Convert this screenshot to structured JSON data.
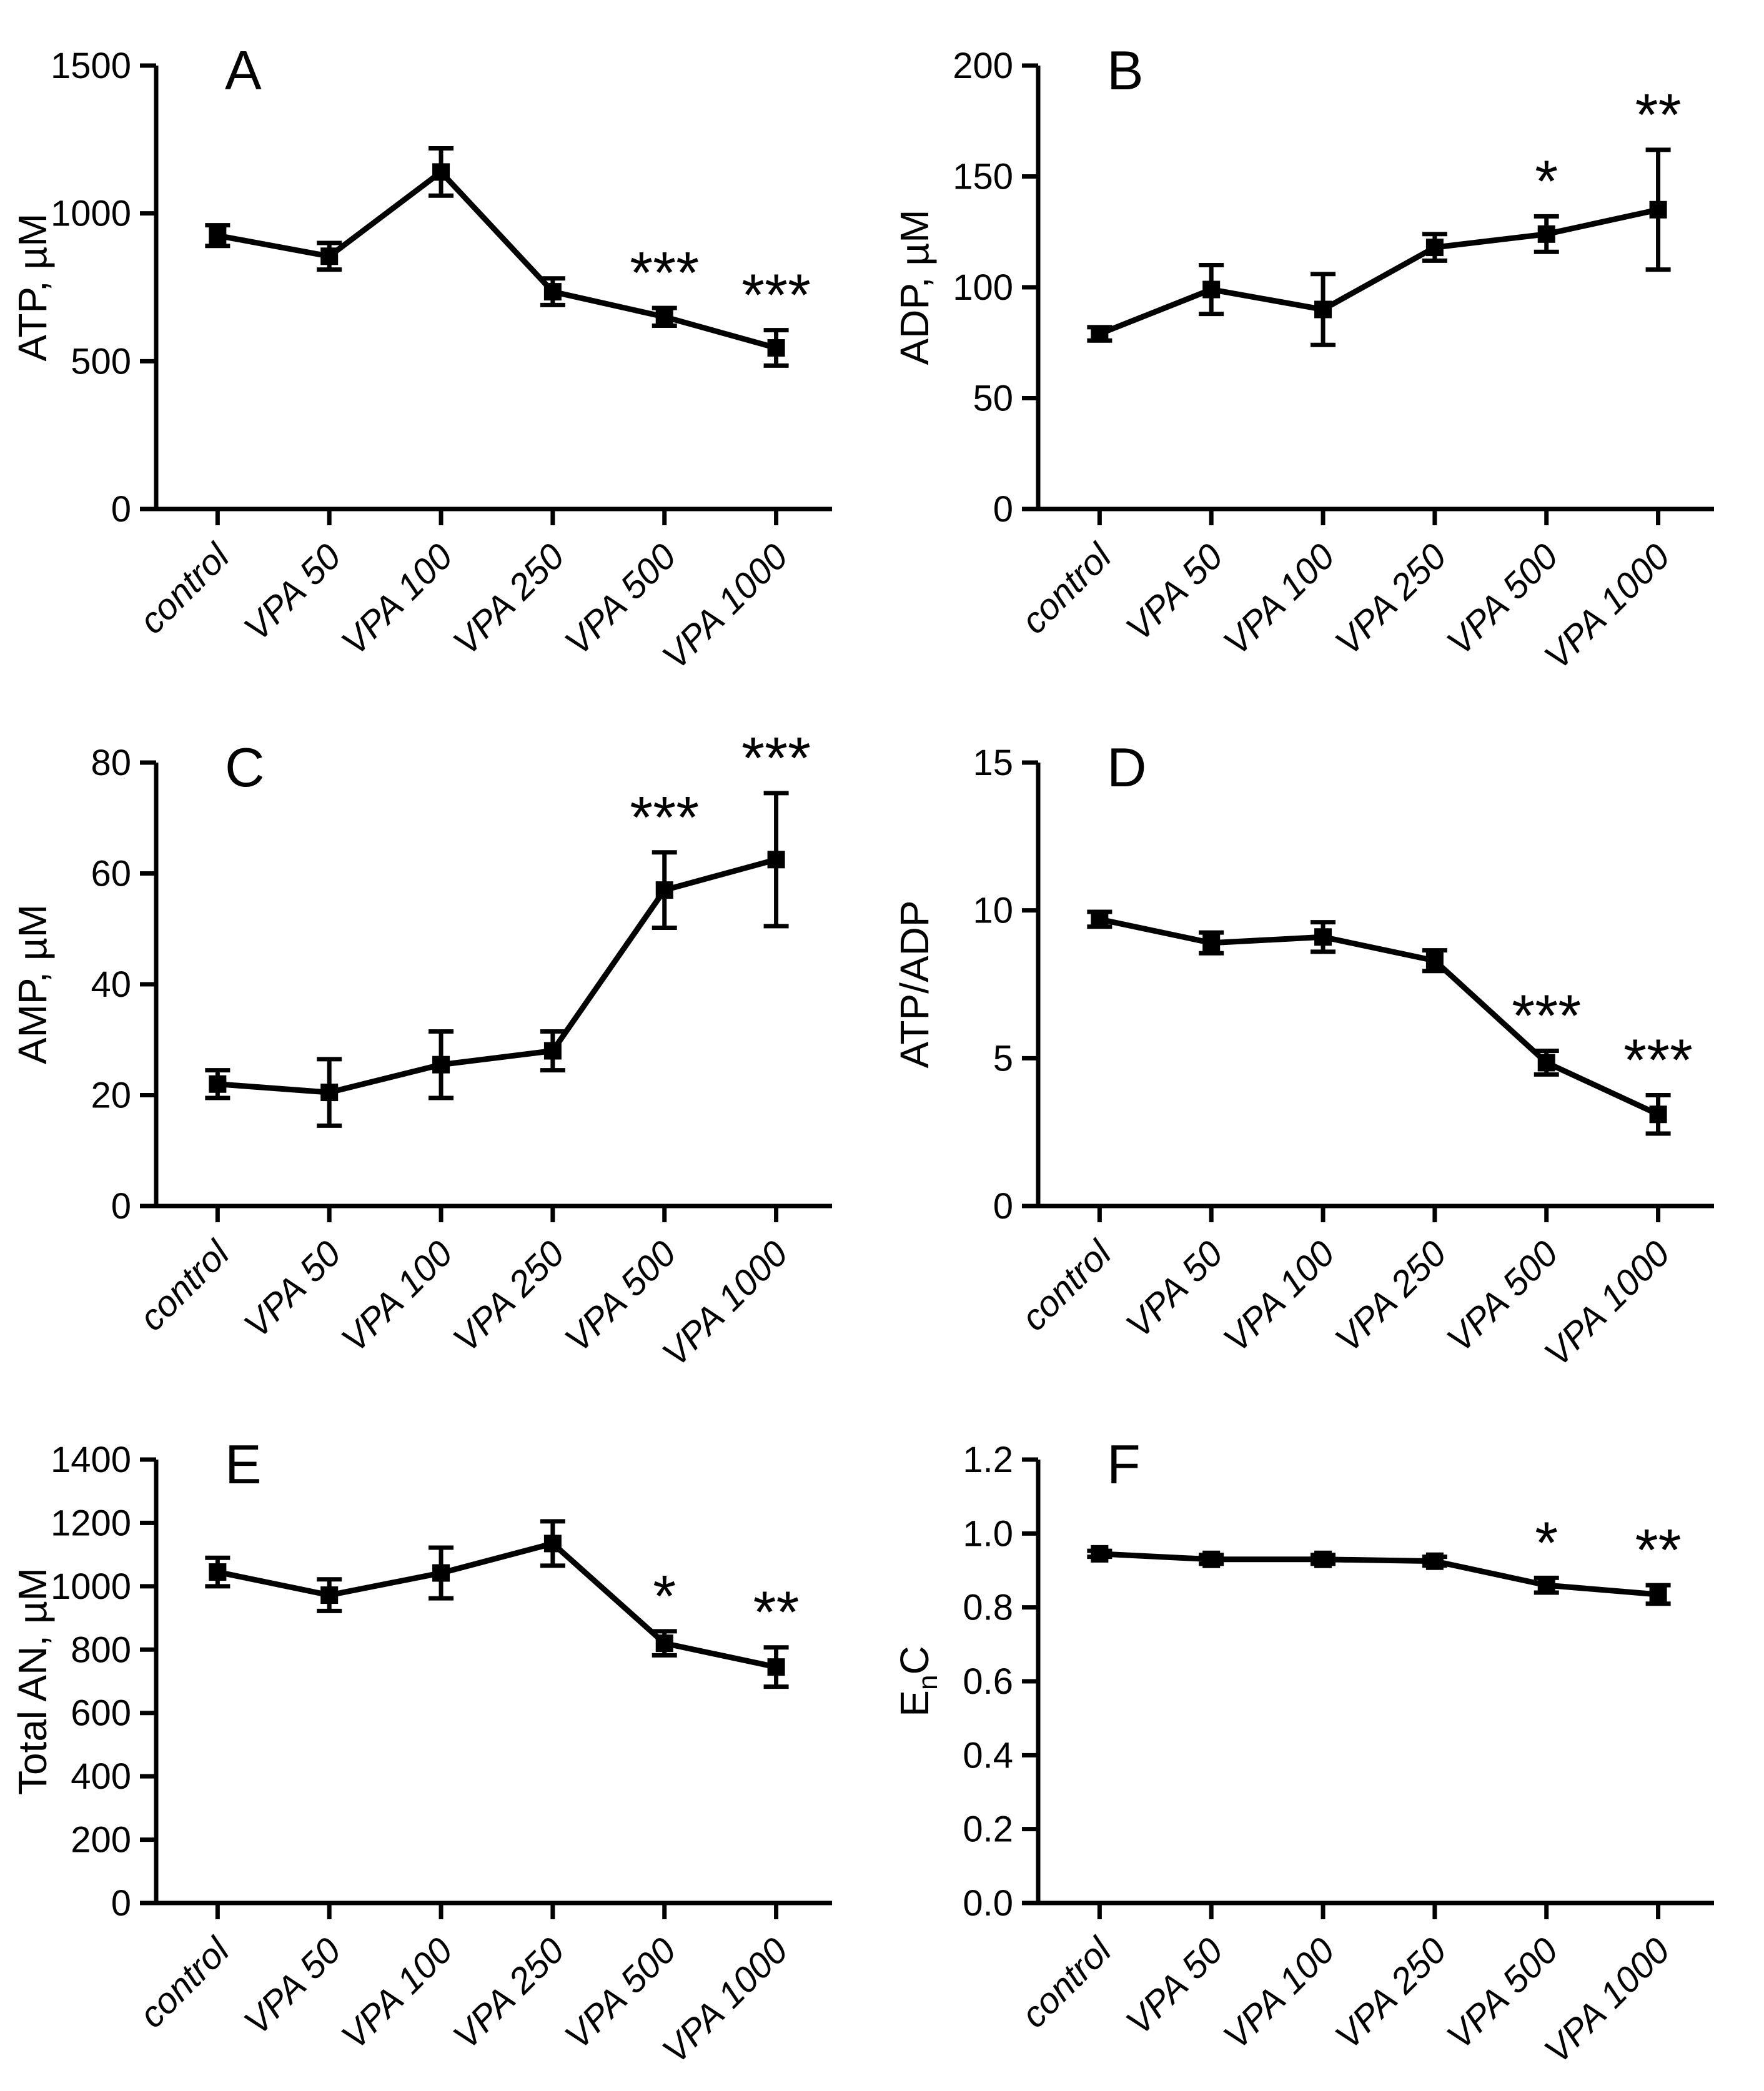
{
  "figure": {
    "background": "#ffffff",
    "line_color": "#000000",
    "text_color": "#000000",
    "marker": "filled-square"
  },
  "categories": [
    "control",
    "VPA 50",
    "VPA 100",
    "VPA 250",
    "VPA 500",
    "VPA 1000"
  ],
  "chart_data": [
    {
      "panel": "A",
      "type": "line",
      "title": "",
      "xlabel": "",
      "ylabel": "ATP, µM",
      "categories": [
        "control",
        "VPA 50",
        "VPA 100",
        "VPA 250",
        "VPA 500",
        "VPA 1000"
      ],
      "values": [
        925,
        855,
        1140,
        735,
        650,
        545
      ],
      "errors": [
        35,
        45,
        80,
        45,
        30,
        60
      ],
      "significance": [
        "",
        "",
        "",
        "",
        "***",
        "***"
      ],
      "ylim": [
        0,
        1500
      ],
      "yticks": [
        0,
        500,
        1000,
        1500
      ],
      "ytick_labels": [
        "0",
        "500",
        "1000",
        "1500"
      ],
      "grid": false,
      "legend": null
    },
    {
      "panel": "B",
      "type": "line",
      "title": "",
      "xlabel": "",
      "ylabel": "ADP, µM",
      "categories": [
        "control",
        "VPA 50",
        "VPA 100",
        "VPA 250",
        "VPA 500",
        "VPA 1000"
      ],
      "values": [
        79,
        99,
        90,
        118,
        124,
        135
      ],
      "errors": [
        3,
        11,
        16,
        6,
        8,
        27
      ],
      "significance": [
        "",
        "",
        "",
        "",
        "*",
        "**"
      ],
      "ylim": [
        0,
        200
      ],
      "yticks": [
        0,
        50,
        100,
        150,
        200
      ],
      "ytick_labels": [
        "0",
        "50",
        "100",
        "150",
        "200"
      ],
      "grid": false,
      "legend": null
    },
    {
      "panel": "C",
      "type": "line",
      "title": "",
      "xlabel": "",
      "ylabel": "AMP, µM",
      "categories": [
        "control",
        "VPA 50",
        "VPA 100",
        "VPA 250",
        "VPA 500",
        "VPA 1000"
      ],
      "values": [
        22,
        20.5,
        25.5,
        28,
        57,
        62.5
      ],
      "errors": [
        2.5,
        6,
        6,
        3.5,
        6.8,
        12
      ],
      "significance": [
        "",
        "",
        "",
        "",
        "***",
        "***"
      ],
      "ylim": [
        0,
        80
      ],
      "yticks": [
        0,
        20,
        40,
        60,
        80
      ],
      "ytick_labels": [
        "0",
        "20",
        "40",
        "60",
        "80"
      ],
      "grid": false,
      "legend": null
    },
    {
      "panel": "D",
      "type": "line",
      "title": "",
      "xlabel": "",
      "ylabel": "ATP/ADP",
      "categories": [
        "control",
        "VPA 50",
        "VPA 100",
        "VPA 250",
        "VPA 500",
        "VPA 1000"
      ],
      "values": [
        9.7,
        8.9,
        9.1,
        8.3,
        4.85,
        3.1
      ],
      "errors": [
        0.25,
        0.35,
        0.5,
        0.35,
        0.4,
        0.65
      ],
      "significance": [
        "",
        "",
        "",
        "",
        "***",
        "***"
      ],
      "ylim": [
        0,
        15
      ],
      "yticks": [
        0,
        5,
        10,
        15
      ],
      "ytick_labels": [
        "0",
        "5",
        "10",
        "15"
      ],
      "grid": false,
      "legend": null
    },
    {
      "panel": "E",
      "type": "line",
      "title": "",
      "xlabel": "",
      "ylabel": "Total AN, µM",
      "categories": [
        "control",
        "VPA 50",
        "VPA 100",
        "VPA 250",
        "VPA 500",
        "VPA 1000"
      ],
      "values": [
        1045,
        972,
        1042,
        1135,
        820,
        745
      ],
      "errors": [
        45,
        50,
        80,
        70,
        38,
        62
      ],
      "significance": [
        "",
        "",
        "",
        "",
        "*",
        "**"
      ],
      "ylim": [
        0,
        1400
      ],
      "yticks": [
        0,
        200,
        400,
        600,
        800,
        1000,
        1200,
        1400
      ],
      "ytick_labels": [
        "0",
        "200",
        "400",
        "600",
        "800",
        "1000",
        "1200",
        "1400"
      ],
      "grid": false,
      "legend": null
    },
    {
      "panel": "F",
      "type": "line",
      "title": "",
      "xlabel": "",
      "ylabel": "EnC",
      "ylabel_parts": {
        "pre": "E",
        "sub": "n",
        "post": "C"
      },
      "categories": [
        "control",
        "VPA 50",
        "VPA 100",
        "VPA 250",
        "VPA 500",
        "VPA 1000"
      ],
      "values": [
        0.945,
        0.93,
        0.93,
        0.925,
        0.86,
        0.835
      ],
      "errors": [
        0.008,
        0.012,
        0.012,
        0.012,
        0.02,
        0.025
      ],
      "significance": [
        "",
        "",
        "",
        "",
        "*",
        "**"
      ],
      "ylim": [
        0,
        1.2
      ],
      "yticks": [
        0,
        0.2,
        0.4,
        0.6,
        0.8,
        1.0,
        1.2
      ],
      "ytick_labels": [
        "0.0",
        "0.2",
        "0.4",
        "0.6",
        "0.8",
        "1.0",
        "1.2"
      ],
      "grid": false,
      "legend": null
    }
  ]
}
